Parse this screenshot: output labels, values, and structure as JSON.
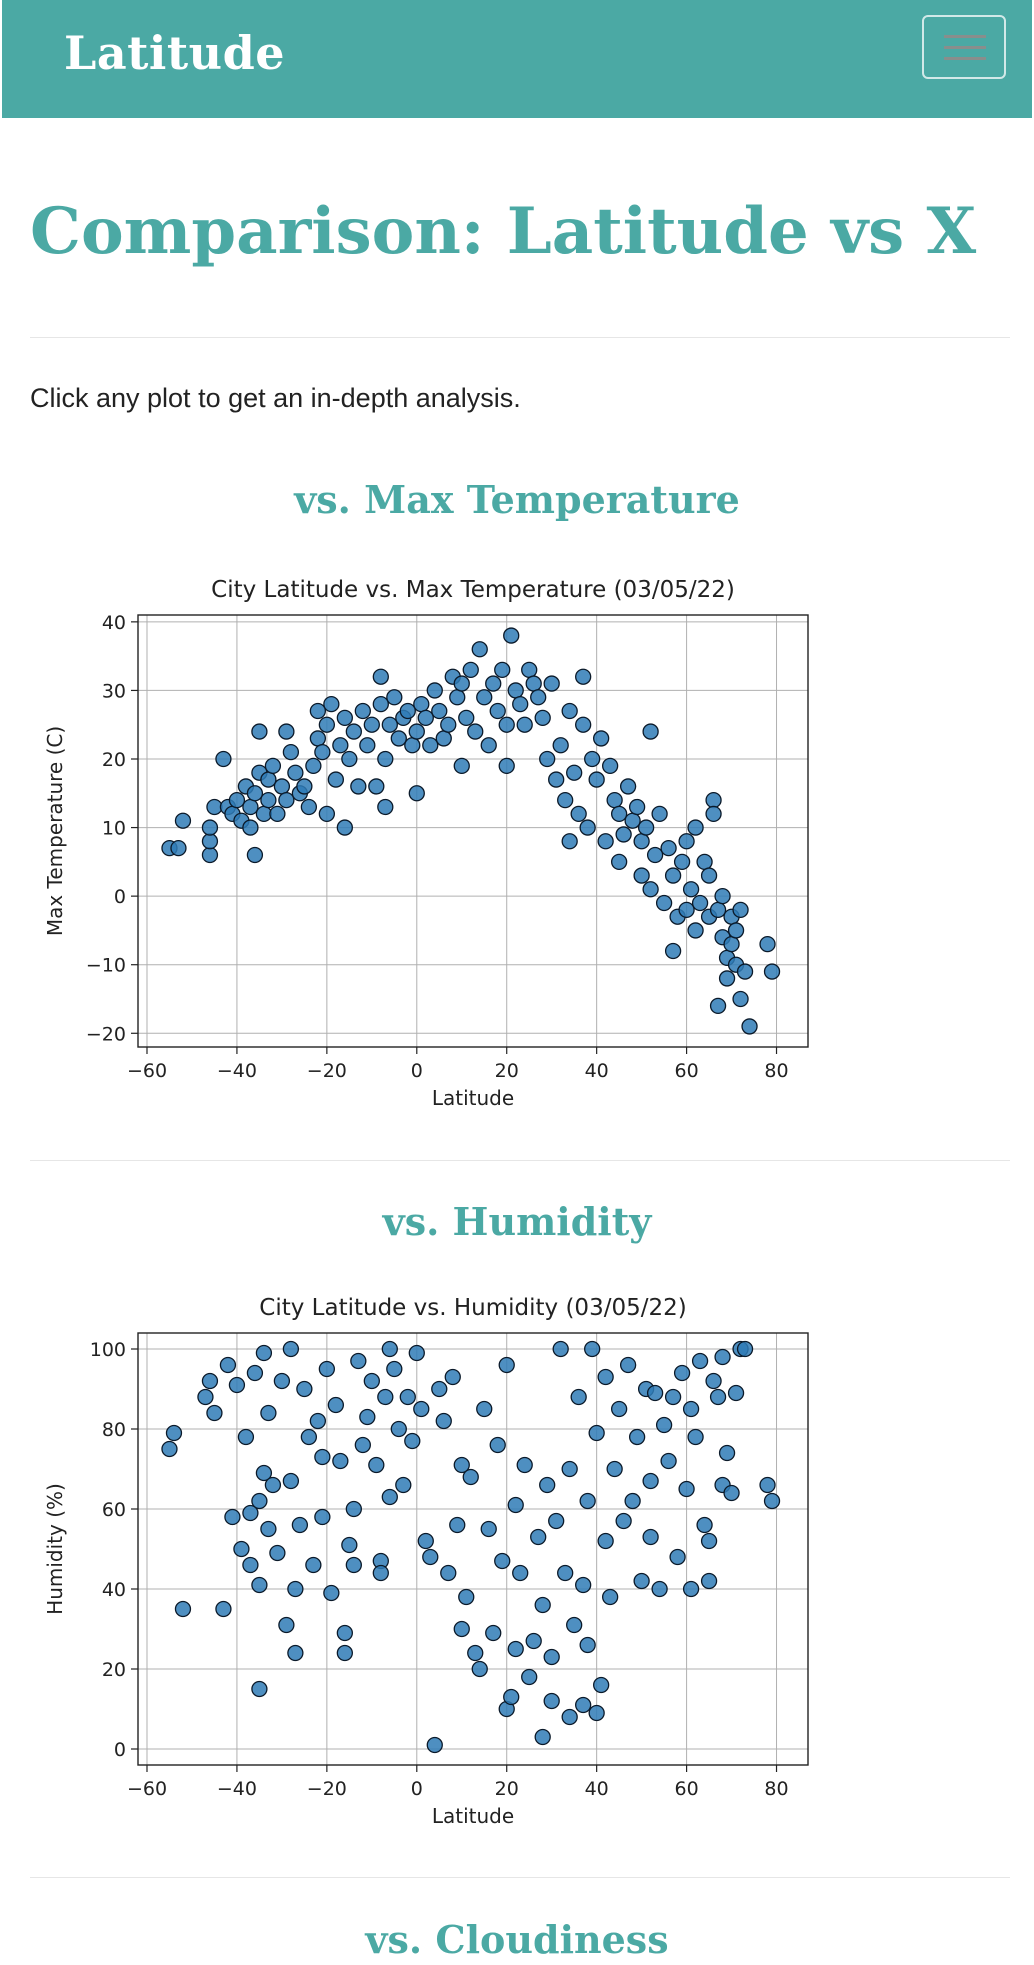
{
  "navbar": {
    "brand": "Latitude"
  },
  "page": {
    "title": "Comparison: Latitude vs X",
    "intro": "Click any plot to get an in-depth analysis."
  },
  "sections": [
    {
      "title": "vs. Max Temperature"
    },
    {
      "title": "vs. Humidity"
    },
    {
      "title": "vs. Cloudiness"
    }
  ],
  "colors": {
    "accent": "#4ba9a4",
    "marker": "#2f7bb6",
    "marker_edge": "#0b1a2a"
  },
  "chart_data": [
    {
      "type": "scatter",
      "title": "City Latitude vs. Max Temperature (03/05/22)",
      "xlabel": "Latitude",
      "ylabel": "Max Temperature (C)",
      "xlim": [
        -62,
        87
      ],
      "ylim": [
        -22,
        41
      ],
      "xticks": [
        -60,
        -40,
        -20,
        0,
        20,
        40,
        60,
        80
      ],
      "yticks": [
        -20,
        -10,
        0,
        10,
        20,
        30,
        40
      ],
      "grid": true,
      "points": [
        [
          -55,
          7
        ],
        [
          -53,
          7
        ],
        [
          -52,
          11
        ],
        [
          -46,
          6
        ],
        [
          -46,
          8
        ],
        [
          -46,
          10
        ],
        [
          -45,
          13
        ],
        [
          -43,
          20
        ],
        [
          -42,
          13
        ],
        [
          -41,
          12
        ],
        [
          -40,
          14
        ],
        [
          -39,
          11
        ],
        [
          -38,
          16
        ],
        [
          -37,
          10
        ],
        [
          -37,
          13
        ],
        [
          -36,
          6
        ],
        [
          -36,
          15
        ],
        [
          -35,
          18
        ],
        [
          -35,
          24
        ],
        [
          -34,
          12
        ],
        [
          -33,
          14
        ],
        [
          -33,
          17
        ],
        [
          -32,
          19
        ],
        [
          -31,
          12
        ],
        [
          -30,
          16
        ],
        [
          -29,
          14
        ],
        [
          -29,
          24
        ],
        [
          -28,
          21
        ],
        [
          -27,
          18
        ],
        [
          -26,
          15
        ],
        [
          -25,
          16
        ],
        [
          -24,
          13
        ],
        [
          -23,
          19
        ],
        [
          -22,
          27
        ],
        [
          -22,
          23
        ],
        [
          -21,
          21
        ],
        [
          -20,
          25
        ],
        [
          -20,
          12
        ],
        [
          -19,
          28
        ],
        [
          -18,
          17
        ],
        [
          -17,
          22
        ],
        [
          -16,
          26
        ],
        [
          -16,
          10
        ],
        [
          -15,
          20
        ],
        [
          -14,
          24
        ],
        [
          -13,
          16
        ],
        [
          -12,
          27
        ],
        [
          -11,
          22
        ],
        [
          -10,
          25
        ],
        [
          -9,
          16
        ],
        [
          -8,
          32
        ],
        [
          -8,
          28
        ],
        [
          -7,
          20
        ],
        [
          -7,
          13
        ],
        [
          -6,
          25
        ],
        [
          -5,
          29
        ],
        [
          -4,
          23
        ],
        [
          -3,
          26
        ],
        [
          -2,
          27
        ],
        [
          -1,
          22
        ],
        [
          0,
          15
        ],
        [
          0,
          24
        ],
        [
          1,
          28
        ],
        [
          2,
          26
        ],
        [
          3,
          22
        ],
        [
          4,
          30
        ],
        [
          5,
          27
        ],
        [
          6,
          23
        ],
        [
          7,
          25
        ],
        [
          8,
          32
        ],
        [
          9,
          29
        ],
        [
          10,
          31
        ],
        [
          10,
          19
        ],
        [
          11,
          26
        ],
        [
          12,
          33
        ],
        [
          13,
          24
        ],
        [
          14,
          36
        ],
        [
          15,
          29
        ],
        [
          16,
          22
        ],
        [
          17,
          31
        ],
        [
          18,
          27
        ],
        [
          19,
          33
        ],
        [
          20,
          25
        ],
        [
          20,
          19
        ],
        [
          21,
          38
        ],
        [
          22,
          30
        ],
        [
          23,
          28
        ],
        [
          24,
          25
        ],
        [
          25,
          33
        ],
        [
          26,
          31
        ],
        [
          27,
          29
        ],
        [
          28,
          26
        ],
        [
          29,
          20
        ],
        [
          30,
          31
        ],
        [
          31,
          17
        ],
        [
          32,
          22
        ],
        [
          33,
          14
        ],
        [
          34,
          27
        ],
        [
          34,
          8
        ],
        [
          35,
          18
        ],
        [
          36,
          12
        ],
        [
          37,
          25
        ],
        [
          37,
          32
        ],
        [
          38,
          10
        ],
        [
          39,
          20
        ],
        [
          40,
          17
        ],
        [
          41,
          23
        ],
        [
          42,
          8
        ],
        [
          43,
          19
        ],
        [
          44,
          14
        ],
        [
          45,
          12
        ],
        [
          45,
          5
        ],
        [
          46,
          9
        ],
        [
          47,
          16
        ],
        [
          48,
          11
        ],
        [
          49,
          13
        ],
        [
          50,
          3
        ],
        [
          50,
          8
        ],
        [
          51,
          10
        ],
        [
          52,
          24
        ],
        [
          52,
          1
        ],
        [
          53,
          6
        ],
        [
          54,
          12
        ],
        [
          55,
          -1
        ],
        [
          56,
          7
        ],
        [
          57,
          3
        ],
        [
          57,
          -8
        ],
        [
          58,
          -3
        ],
        [
          59,
          5
        ],
        [
          60,
          8
        ],
        [
          60,
          -2
        ],
        [
          61,
          1
        ],
        [
          62,
          10
        ],
        [
          62,
          -5
        ],
        [
          63,
          -1
        ],
        [
          64,
          5
        ],
        [
          65,
          -3
        ],
        [
          65,
          3
        ],
        [
          66,
          14
        ],
        [
          66,
          12
        ],
        [
          67,
          -2
        ],
        [
          67,
          -16
        ],
        [
          68,
          -6
        ],
        [
          68,
          0
        ],
        [
          69,
          -9
        ],
        [
          69,
          -12
        ],
        [
          70,
          -3
        ],
        [
          70,
          -7
        ],
        [
          71,
          -5
        ],
        [
          71,
          -10
        ],
        [
          72,
          -2
        ],
        [
          72,
          -15
        ],
        [
          73,
          -11
        ],
        [
          74,
          -19
        ],
        [
          78,
          -7
        ],
        [
          79,
          -11
        ]
      ]
    },
    {
      "type": "scatter",
      "title": "City Latitude vs. Humidity (03/05/22)",
      "xlabel": "Latitude",
      "ylabel": "Humidity (%)",
      "xlim": [
        -62,
        87
      ],
      "ylim": [
        -4,
        104
      ],
      "xticks": [
        -60,
        -40,
        -20,
        0,
        20,
        40,
        60,
        80
      ],
      "yticks": [
        0,
        20,
        40,
        60,
        80,
        100
      ],
      "grid": true,
      "points": [
        [
          -55,
          75
        ],
        [
          -54,
          79
        ],
        [
          -52,
          35
        ],
        [
          -47,
          88
        ],
        [
          -46,
          92
        ],
        [
          -45,
          84
        ],
        [
          -43,
          35
        ],
        [
          -42,
          96
        ],
        [
          -41,
          58
        ],
        [
          -40,
          91
        ],
        [
          -39,
          50
        ],
        [
          -38,
          78
        ],
        [
          -37,
          59
        ],
        [
          -37,
          46
        ],
        [
          -36,
          94
        ],
        [
          -35,
          15
        ],
        [
          -35,
          41
        ],
        [
          -35,
          62
        ],
        [
          -34,
          99
        ],
        [
          -34,
          69
        ],
        [
          -33,
          55
        ],
        [
          -33,
          84
        ],
        [
          -32,
          66
        ],
        [
          -31,
          49
        ],
        [
          -30,
          92
        ],
        [
          -29,
          31
        ],
        [
          -28,
          67
        ],
        [
          -28,
          100
        ],
        [
          -27,
          24
        ],
        [
          -27,
          40
        ],
        [
          -26,
          56
        ],
        [
          -25,
          90
        ],
        [
          -24,
          78
        ],
        [
          -23,
          46
        ],
        [
          -22,
          82
        ],
        [
          -21,
          58
        ],
        [
          -21,
          73
        ],
        [
          -20,
          95
        ],
        [
          -19,
          39
        ],
        [
          -18,
          86
        ],
        [
          -17,
          72
        ],
        [
          -16,
          29
        ],
        [
          -16,
          24
        ],
        [
          -15,
          51
        ],
        [
          -14,
          60
        ],
        [
          -14,
          46
        ],
        [
          -13,
          97
        ],
        [
          -12,
          76
        ],
        [
          -11,
          83
        ],
        [
          -10,
          92
        ],
        [
          -9,
          71
        ],
        [
          -8,
          47
        ],
        [
          -8,
          44
        ],
        [
          -7,
          88
        ],
        [
          -6,
          63
        ],
        [
          -6,
          100
        ],
        [
          -5,
          95
        ],
        [
          -4,
          80
        ],
        [
          -3,
          66
        ],
        [
          -2,
          88
        ],
        [
          -1,
          77
        ],
        [
          0,
          99
        ],
        [
          1,
          85
        ],
        [
          2,
          52
        ],
        [
          3,
          48
        ],
        [
          4,
          1
        ],
        [
          5,
          90
        ],
        [
          6,
          82
        ],
        [
          7,
          44
        ],
        [
          8,
          93
        ],
        [
          9,
          56
        ],
        [
          10,
          71
        ],
        [
          10,
          30
        ],
        [
          11,
          38
        ],
        [
          12,
          68
        ],
        [
          13,
          24
        ],
        [
          14,
          20
        ],
        [
          15,
          85
        ],
        [
          16,
          55
        ],
        [
          17,
          29
        ],
        [
          18,
          76
        ],
        [
          19,
          47
        ],
        [
          20,
          10
        ],
        [
          20,
          96
        ],
        [
          21,
          13
        ],
        [
          22,
          25
        ],
        [
          22,
          61
        ],
        [
          23,
          44
        ],
        [
          24,
          71
        ],
        [
          25,
          18
        ],
        [
          26,
          27
        ],
        [
          27,
          53
        ],
        [
          28,
          3
        ],
        [
          28,
          36
        ],
        [
          29,
          66
        ],
        [
          30,
          23
        ],
        [
          30,
          12
        ],
        [
          31,
          57
        ],
        [
          32,
          100
        ],
        [
          33,
          44
        ],
        [
          34,
          70
        ],
        [
          34,
          8
        ],
        [
          35,
          31
        ],
        [
          36,
          88
        ],
        [
          37,
          11
        ],
        [
          37,
          41
        ],
        [
          38,
          26
        ],
        [
          38,
          62
        ],
        [
          39,
          100
        ],
        [
          40,
          9
        ],
        [
          40,
          79
        ],
        [
          41,
          16
        ],
        [
          42,
          52
        ],
        [
          42,
          93
        ],
        [
          43,
          38
        ],
        [
          44,
          70
        ],
        [
          45,
          85
        ],
        [
          46,
          57
        ],
        [
          47,
          96
        ],
        [
          48,
          62
        ],
        [
          49,
          78
        ],
        [
          50,
          42
        ],
        [
          51,
          90
        ],
        [
          52,
          67
        ],
        [
          52,
          53
        ],
        [
          53,
          89
        ],
        [
          54,
          40
        ],
        [
          55,
          81
        ],
        [
          56,
          72
        ],
        [
          57,
          88
        ],
        [
          58,
          48
        ],
        [
          59,
          94
        ],
        [
          60,
          65
        ],
        [
          61,
          40
        ],
        [
          61,
          85
        ],
        [
          62,
          78
        ],
        [
          63,
          97
        ],
        [
          64,
          56
        ],
        [
          65,
          52
        ],
        [
          65,
          42
        ],
        [
          66,
          92
        ],
        [
          67,
          88
        ],
        [
          68,
          66
        ],
        [
          68,
          98
        ],
        [
          69,
          74
        ],
        [
          70,
          64
        ],
        [
          71,
          89
        ],
        [
          72,
          100
        ],
        [
          73,
          100
        ],
        [
          78,
          66
        ],
        [
          79,
          62
        ]
      ]
    }
  ]
}
